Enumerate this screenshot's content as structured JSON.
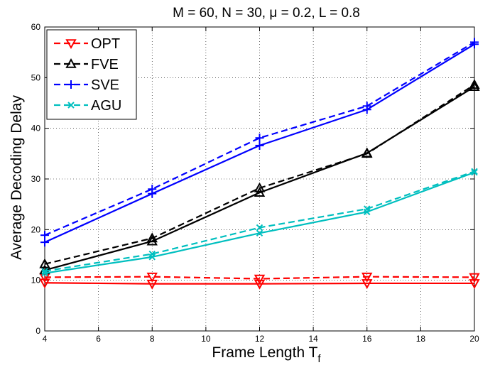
{
  "chart_data": {
    "type": "line",
    "title": "M = 60, N = 30, μ = 0.2, L = 0.8",
    "xlabel": "Frame Length T",
    "xlabel_subscript": "f",
    "ylabel": "Average Decoding Delay",
    "x": [
      4,
      8,
      12,
      16,
      20
    ],
    "xlim": [
      4,
      20
    ],
    "ylim": [
      0,
      60
    ],
    "xticks": [
      4,
      6,
      8,
      10,
      12,
      14,
      16,
      18,
      20
    ],
    "yticks": [
      0,
      10,
      20,
      30,
      40,
      50,
      60
    ],
    "grid": true,
    "legend_position": "top-left",
    "series": [
      {
        "name": "OPT",
        "color": "#ff0000",
        "marker": "triangle-down",
        "solid": [
          9.5,
          9.3,
          9.3,
          9.4,
          9.4
        ],
        "dashed": [
          10.6,
          10.7,
          10.3,
          10.7,
          10.6
        ]
      },
      {
        "name": "FVE",
        "color": "#000000",
        "marker": "triangle-up",
        "solid": [
          12.0,
          17.7,
          27.3,
          35.1,
          48.2
        ],
        "dashed": [
          13.2,
          18.3,
          28.2,
          35.0,
          48.6
        ]
      },
      {
        "name": "SVE",
        "color": "#0000ff",
        "marker": "plus",
        "solid": [
          17.5,
          27.1,
          36.6,
          43.7,
          56.6
        ],
        "dashed": [
          18.9,
          28.0,
          38.1,
          44.4,
          57.0
        ]
      },
      {
        "name": "AGU",
        "color": "#00bfbf",
        "marker": "x",
        "solid": [
          11.4,
          14.6,
          19.3,
          23.5,
          31.3
        ],
        "dashed": [
          11.8,
          15.2,
          20.4,
          24.1,
          31.5
        ]
      }
    ]
  }
}
